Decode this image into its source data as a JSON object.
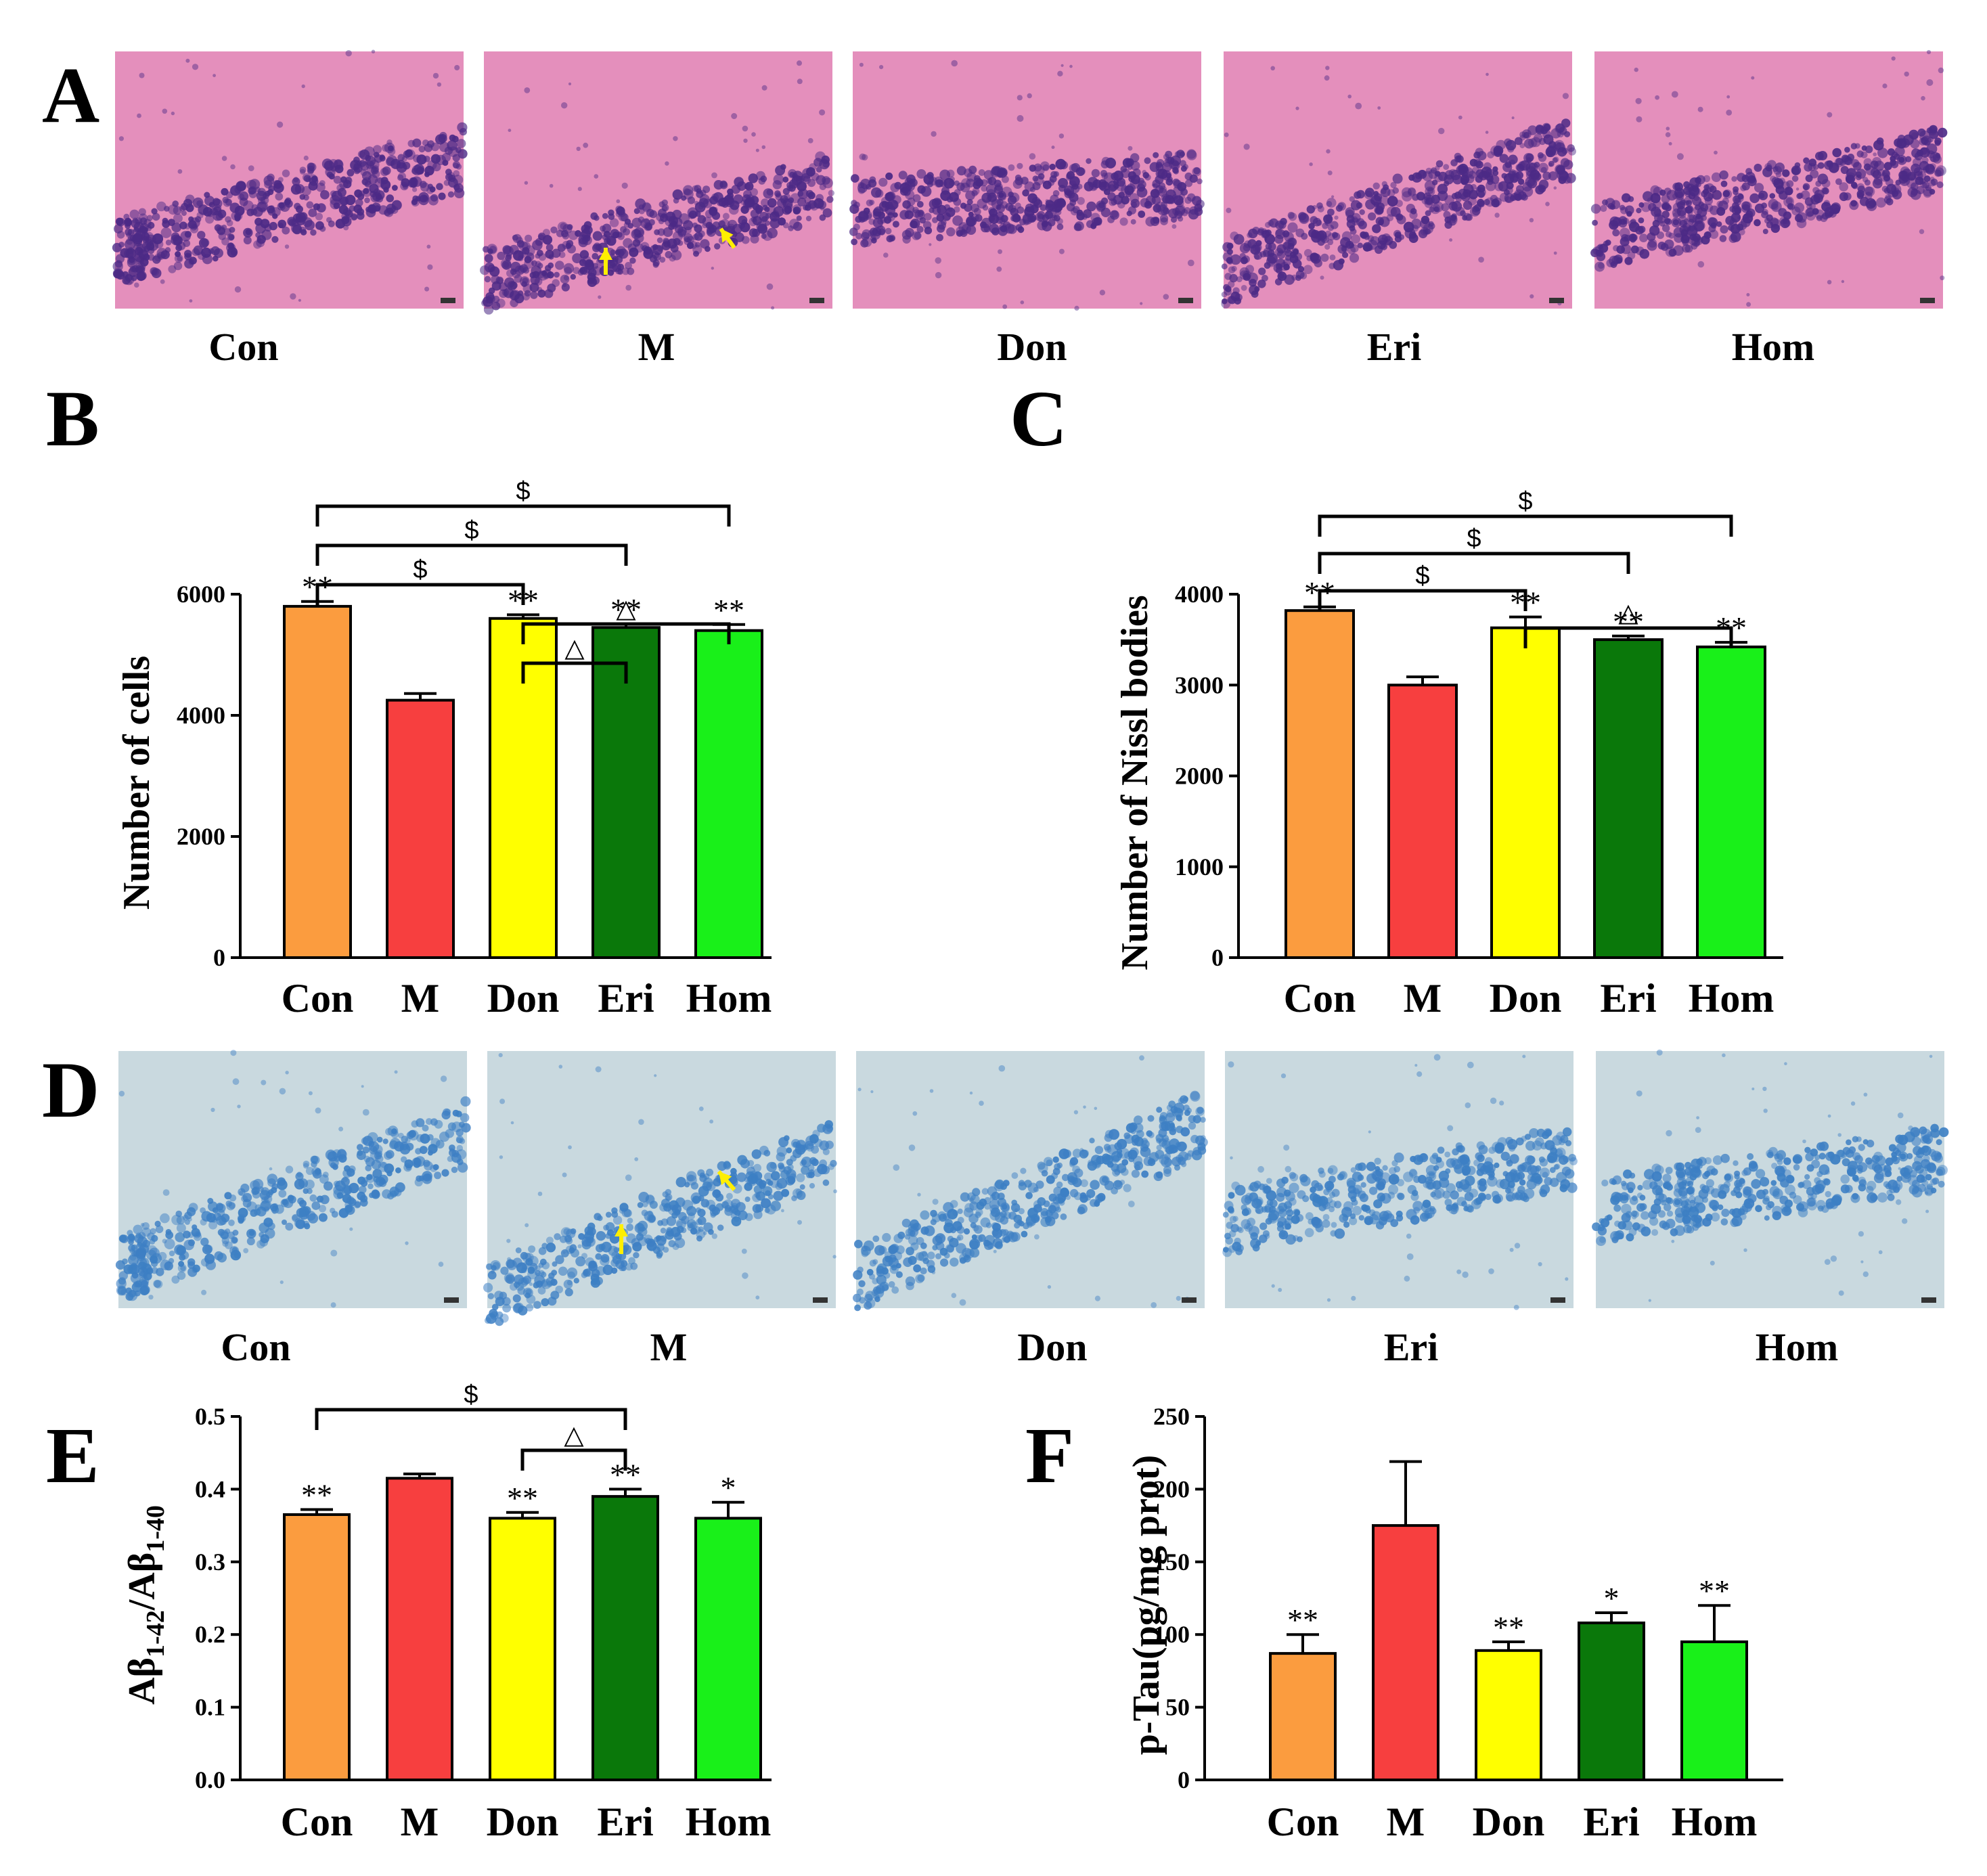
{
  "panel_letters": [
    "A",
    "B",
    "C",
    "D",
    "E",
    "F"
  ],
  "he_captions": [
    "Con",
    "M",
    "Don",
    "Eri",
    "Hom"
  ],
  "nissl_captions": [
    "Con",
    "M",
    "Don",
    "Eri",
    "Hom"
  ],
  "colors": {
    "Con": "#fb9c3f",
    "M": "#f73f3f",
    "Don": "#ffff00",
    "Eri": "#0a780a",
    "Hom": "#19f019",
    "he_bg": "#e48fbc",
    "he_cell": "#4c2a86",
    "nissl_bg": "#c9d9df",
    "nissl_cell": "#3d7fc4",
    "arrow": "#ffef00"
  },
  "chart_data": [
    {
      "panel": "B",
      "type": "bar",
      "categories": [
        "Con",
        "M",
        "Don",
        "Eri",
        "Hom"
      ],
      "values": [
        5800,
        4250,
        5600,
        5450,
        5400
      ],
      "errors": [
        80,
        110,
        60,
        60,
        100
      ],
      "ylabel": "Number of cells",
      "ylim": [
        0,
        6000
      ],
      "yticks": [
        "0",
        "2000",
        "4000",
        "6000"
      ],
      "annotations": [
        "**",
        "",
        "**",
        "**",
        "**"
      ],
      "brackets": [
        {
          "from": 0,
          "to": 4,
          "label": "$"
        },
        {
          "from": 0,
          "to": 3,
          "label": "$"
        },
        {
          "from": 0,
          "to": 2,
          "label": "$"
        },
        {
          "from": 2,
          "to": 4,
          "label": "△"
        },
        {
          "from": 2,
          "to": 3,
          "label": "△"
        }
      ]
    },
    {
      "panel": "C",
      "type": "bar",
      "categories": [
        "Con",
        "M",
        "Don",
        "Eri",
        "Hom"
      ],
      "values": [
        3820,
        3000,
        3630,
        3500,
        3420
      ],
      "errors": [
        40,
        90,
        120,
        40,
        50
      ],
      "ylabel": "Number of Nissl bodies",
      "ylim": [
        0,
        4000
      ],
      "yticks": [
        "0",
        "1000",
        "2000",
        "3000",
        "4000"
      ],
      "annotations": [
        "**",
        "",
        "**",
        "**",
        "**"
      ],
      "brackets": [
        {
          "from": 0,
          "to": 4,
          "label": "$"
        },
        {
          "from": 0,
          "to": 3,
          "label": "$"
        },
        {
          "from": 0,
          "to": 2,
          "label": "$"
        },
        {
          "from": 2,
          "to": 4,
          "label": "△"
        }
      ]
    },
    {
      "panel": "E",
      "type": "bar",
      "categories": [
        "Con",
        "M",
        "Don",
        "Eri",
        "Hom"
      ],
      "values": [
        0.365,
        0.415,
        0.36,
        0.39,
        0.36
      ],
      "errors": [
        0.007,
        0.006,
        0.008,
        0.01,
        0.022
      ],
      "ylabel": "Aβ1-42/Aβ1-40",
      "ylabel_parts": {
        "a": "Aβ",
        "s1": "1-42",
        "b": "/Aβ",
        "s2": "1-40"
      },
      "ylim": [
        0,
        0.5
      ],
      "yticks": [
        "0.0",
        "0.1",
        "0.2",
        "0.3",
        "0.4",
        "0.5"
      ],
      "annotations": [
        "**",
        "",
        "**",
        "**",
        "*"
      ],
      "brackets": [
        {
          "from": 0,
          "to": 3,
          "label": "$"
        },
        {
          "from": 2,
          "to": 3,
          "label": "△"
        }
      ]
    },
    {
      "panel": "F",
      "type": "bar",
      "categories": [
        "Con",
        "M",
        "Don",
        "Eri",
        "Hom"
      ],
      "values": [
        87,
        175,
        89,
        108,
        95
      ],
      "errors": [
        13,
        44,
        6,
        7,
        25
      ],
      "ylabel": "p-Tau(pg/mg prot)",
      "ylim": [
        0,
        250
      ],
      "yticks": [
        "0",
        "50",
        "100",
        "150",
        "200",
        "250"
      ],
      "annotations": [
        "**",
        "",
        "**",
        "*",
        "**"
      ],
      "brackets": []
    }
  ]
}
